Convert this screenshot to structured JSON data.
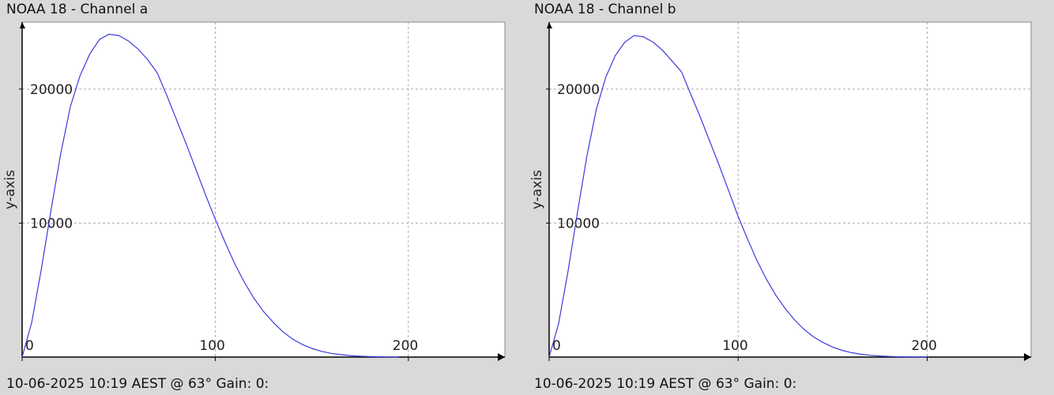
{
  "chart_data": [
    {
      "type": "line",
      "title": "NOAA 18 - Channel a",
      "footer": "10-06-2025 10:19 AEST @ 63° Gain: 0:",
      "ylabel": "y-axis",
      "xlabel": "",
      "xlim": [
        0,
        250
      ],
      "ylim": [
        0,
        25000
      ],
      "xticks": [
        "0",
        "100",
        "200"
      ],
      "yticks": [
        "10000",
        "20000"
      ],
      "grid": true,
      "color": "#3b3bdc",
      "series": [
        {
          "x": [
            0,
            5,
            10,
            15,
            20,
            25,
            30,
            35,
            40,
            45,
            50,
            55,
            60,
            65,
            70,
            75,
            80,
            85,
            90,
            95,
            100,
            105,
            110,
            115,
            120,
            125,
            130,
            135,
            140,
            145,
            150,
            155,
            160,
            165,
            170,
            175,
            180,
            185,
            190,
            195
          ],
          "y": [
            0,
            2600,
            6600,
            11000,
            15200,
            18700,
            21000,
            22600,
            23700,
            24100,
            24000,
            23600,
            23000,
            22200,
            21200,
            19500,
            17700,
            15900,
            14000,
            12100,
            10300,
            8600,
            7000,
            5600,
            4400,
            3400,
            2600,
            1900,
            1350,
            950,
            650,
            430,
            280,
            180,
            110,
            65,
            35,
            20,
            10,
            0
          ]
        }
      ]
    },
    {
      "type": "line",
      "title": "NOAA 18 - Channel b",
      "footer": "10-06-2025 10:19 AEST @ 63° Gain: 0:",
      "ylabel": "y-axis",
      "xlabel": "",
      "xlim": [
        0,
        255
      ],
      "ylim": [
        0,
        25000
      ],
      "xticks": [
        "0",
        "100",
        "200"
      ],
      "yticks": [
        "10000",
        "20000"
      ],
      "grid": true,
      "color": "#3b3bdc",
      "series": [
        {
          "x": [
            0,
            5,
            10,
            15,
            20,
            25,
            30,
            35,
            40,
            45,
            50,
            55,
            60,
            65,
            70,
            75,
            80,
            85,
            90,
            95,
            100,
            105,
            110,
            115,
            120,
            125,
            130,
            135,
            140,
            145,
            150,
            155,
            160,
            165,
            170,
            175,
            180,
            185,
            190,
            195,
            200
          ],
          "y": [
            0,
            2500,
            6400,
            10800,
            15000,
            18500,
            20900,
            22500,
            23500,
            24000,
            23900,
            23500,
            22900,
            22100,
            21300,
            19600,
            17900,
            16100,
            14300,
            12400,
            10500,
            8800,
            7200,
            5800,
            4600,
            3600,
            2750,
            2050,
            1500,
            1080,
            750,
            500,
            330,
            210,
            130,
            80,
            45,
            25,
            12,
            5,
            0
          ]
        }
      ]
    }
  ]
}
